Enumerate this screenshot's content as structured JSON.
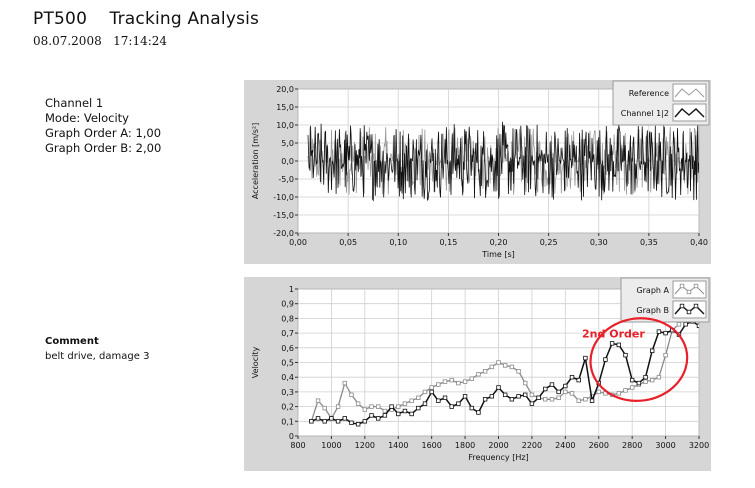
{
  "header": {
    "title": "PT500    Tracking Analysis",
    "datetime": "08.07.2008   17:14:24"
  },
  "info": {
    "channel": "Channel 1",
    "mode": "Mode: Velocity",
    "order_a": "Graph Order A: 1,00",
    "order_b": "Graph Order B: 2,00"
  },
  "comment": {
    "heading": "Comment",
    "text": "belt drive, damage 3"
  },
  "colors": {
    "panel": "#d6d6d6",
    "plot_bg": "#ffffff",
    "grid": "#cfcfcf",
    "series_dark": "#111111",
    "series_light": "#8a8a8a",
    "annotation": "#e8202a"
  },
  "chart_data": [
    {
      "type": "line",
      "xlabel": "Time [s]",
      "ylabel": "Acceleration [m/s²]",
      "xlim": [
        0,
        0.4
      ],
      "ylim": [
        -20,
        20
      ],
      "x_ticks": [
        0,
        0.05,
        0.1,
        0.15,
        0.2,
        0.25,
        0.3,
        0.35,
        0.4
      ],
      "x_tick_labels": [
        "0,00",
        "0,05",
        "0,10",
        "0,15",
        "0,20",
        "0,25",
        "0,30",
        "0,35",
        "0,40"
      ],
      "y_ticks": [
        20,
        15,
        10,
        5,
        0,
        -5,
        -10,
        -15,
        -20
      ],
      "y_tick_labels": [
        "20,0",
        "15,0",
        "10,0",
        "5,0",
        "0,0",
        "-5,0",
        "-10,0",
        "-15,0",
        "-20,0"
      ],
      "grid": true,
      "legend_position": "top-right",
      "series": [
        {
          "name": "Reference",
          "color": "#9a9a9a",
          "sample_count": 600,
          "amplitude": 9.5,
          "x_start": 0.01,
          "x_end": 0.4
        },
        {
          "name": "Channel 1|2",
          "color": "#111111",
          "sample_count": 600,
          "amplitude": 11,
          "x_start": 0.01,
          "x_end": 0.4
        }
      ]
    },
    {
      "type": "line",
      "xlabel": "Frequency [Hz]",
      "ylabel": "Velocity",
      "xlim": [
        800,
        3200
      ],
      "ylim": [
        0,
        1
      ],
      "x_ticks": [
        800,
        1000,
        1200,
        1400,
        1600,
        1800,
        2000,
        2200,
        2400,
        2600,
        2800,
        3000,
        3200
      ],
      "x_tick_labels": [
        "800",
        "1000",
        "1200",
        "1400",
        "1600",
        "1800",
        "2000",
        "2200",
        "2400",
        "2600",
        "2800",
        "3000",
        "3200"
      ],
      "y_ticks": [
        1,
        0.9,
        0.8,
        0.7,
        0.6,
        0.5,
        0.4,
        0.3,
        0.2,
        0.1,
        0
      ],
      "y_tick_labels": [
        "1",
        "0,9",
        "0,8",
        "0,7",
        "0,6",
        "0,5",
        "0,4",
        "0,3",
        "0,2",
        "0,1",
        "0"
      ],
      "grid": true,
      "legend_position": "top-right",
      "annotation": {
        "text": "2nd Order",
        "x": 2500,
        "y": 0.67,
        "ellipse_center": [
          2840,
          0.52
        ],
        "ellipse_radius_hz": 290,
        "ellipse_radius_val": 0.28
      },
      "series": [
        {
          "name": "Graph A",
          "color": "#8a8a8a",
          "x": [
            880,
            920,
            960,
            1000,
            1040,
            1080,
            1120,
            1160,
            1200,
            1240,
            1280,
            1320,
            1360,
            1400,
            1440,
            1480,
            1520,
            1560,
            1600,
            1640,
            1680,
            1720,
            1760,
            1800,
            1840,
            1880,
            1920,
            1960,
            2000,
            2040,
            2080,
            2120,
            2160,
            2200,
            2240,
            2280,
            2320,
            2360,
            2400,
            2440,
            2480,
            2520,
            2560,
            2600,
            2640,
            2680,
            2720,
            2760,
            2800,
            2840,
            2880,
            2920,
            2960,
            3000,
            3040,
            3080,
            3120,
            3160,
            3200
          ],
          "y": [
            0.1,
            0.24,
            0.19,
            0.12,
            0.2,
            0.36,
            0.28,
            0.22,
            0.18,
            0.2,
            0.2,
            0.17,
            0.18,
            0.2,
            0.22,
            0.24,
            0.26,
            0.3,
            0.33,
            0.35,
            0.37,
            0.38,
            0.36,
            0.37,
            0.39,
            0.42,
            0.44,
            0.47,
            0.5,
            0.48,
            0.47,
            0.44,
            0.36,
            0.28,
            0.26,
            0.25,
            0.25,
            0.26,
            0.3,
            0.29,
            0.24,
            0.25,
            0.27,
            0.3,
            0.29,
            0.28,
            0.29,
            0.31,
            0.33,
            0.35,
            0.37,
            0.38,
            0.4,
            0.55,
            0.72,
            0.76,
            0.8,
            0.83,
            0.8
          ]
        },
        {
          "name": "Graph B",
          "color": "#111111",
          "x": [
            880,
            920,
            960,
            1000,
            1040,
            1080,
            1120,
            1160,
            1200,
            1240,
            1280,
            1320,
            1360,
            1400,
            1440,
            1480,
            1520,
            1560,
            1600,
            1640,
            1680,
            1720,
            1760,
            1800,
            1840,
            1880,
            1920,
            1960,
            2000,
            2040,
            2080,
            2120,
            2160,
            2200,
            2240,
            2280,
            2320,
            2360,
            2400,
            2440,
            2480,
            2520,
            2560,
            2600,
            2640,
            2680,
            2720,
            2760,
            2800,
            2840,
            2880,
            2920,
            2960,
            3000,
            3040,
            3080,
            3120,
            3160,
            3200
          ],
          "y": [
            0.1,
            0.12,
            0.1,
            0.12,
            0.1,
            0.12,
            0.09,
            0.08,
            0.1,
            0.14,
            0.12,
            0.14,
            0.2,
            0.15,
            0.17,
            0.15,
            0.19,
            0.22,
            0.3,
            0.24,
            0.26,
            0.2,
            0.22,
            0.27,
            0.19,
            0.16,
            0.25,
            0.27,
            0.33,
            0.28,
            0.25,
            0.27,
            0.28,
            0.22,
            0.26,
            0.32,
            0.35,
            0.3,
            0.34,
            0.4,
            0.38,
            0.53,
            0.24,
            0.36,
            0.52,
            0.63,
            0.62,
            0.55,
            0.38,
            0.36,
            0.4,
            0.58,
            0.71,
            0.7,
            0.72,
            0.69,
            0.76,
            0.78,
            0.75
          ]
        }
      ]
    }
  ]
}
